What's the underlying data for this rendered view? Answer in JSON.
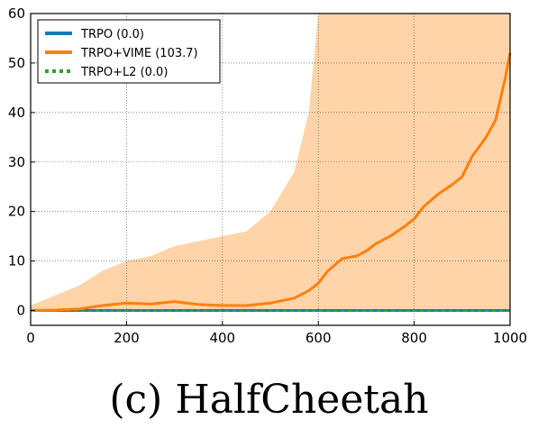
{
  "caption": "(c) HalfCheetah",
  "chart_data": {
    "type": "line",
    "xlim": [
      0,
      1000
    ],
    "ylim": [
      -3,
      60
    ],
    "xticks": [
      0,
      200,
      400,
      600,
      800,
      1000
    ],
    "yticks": [
      0,
      10,
      20,
      30,
      40,
      50,
      60
    ],
    "grid": true,
    "legend_position": "top-left",
    "series": [
      {
        "name": "TRPO (0.0)",
        "color": "#1f77b4",
        "style": "solid",
        "x": [
          0,
          100,
          200,
          300,
          400,
          500,
          600,
          700,
          800,
          900,
          1000
        ],
        "y": [
          0,
          0,
          0,
          0,
          0,
          0,
          0,
          0,
          0,
          0,
          0
        ]
      },
      {
        "name": "TRPO+VIME (103.7)",
        "color": "#ff7f0e",
        "band_color": "#ffcc99",
        "style": "solid",
        "x": [
          0,
          50,
          100,
          150,
          200,
          250,
          300,
          350,
          400,
          450,
          500,
          550,
          580,
          600,
          620,
          650,
          680,
          700,
          720,
          750,
          780,
          800,
          820,
          850,
          880,
          900,
          920,
          950,
          970,
          990,
          1000
        ],
        "y": [
          0,
          0.1,
          0.3,
          1.0,
          1.5,
          1.3,
          1.8,
          1.2,
          1.0,
          1.0,
          1.5,
          2.5,
          4.0,
          5.5,
          8.0,
          10.5,
          11.0,
          12.0,
          13.5,
          15.0,
          17.0,
          18.5,
          21.0,
          23.5,
          25.5,
          27.0,
          31.0,
          35.0,
          38.5,
          47.0,
          52.0
        ],
        "band_upper": [
          1,
          3,
          5,
          8,
          10,
          11,
          13,
          14,
          15,
          16,
          20,
          28,
          40,
          60,
          60,
          60,
          60,
          60,
          60,
          60,
          60,
          60,
          60,
          60,
          60,
          60,
          60,
          60,
          60,
          60,
          60
        ],
        "band_lower": [
          0,
          0,
          0,
          0,
          0,
          0,
          0,
          0,
          0,
          0,
          0,
          0,
          0,
          0,
          0,
          0,
          0,
          0,
          0,
          0,
          0,
          0,
          0,
          0,
          0,
          0,
          0,
          0,
          0,
          0,
          0
        ]
      },
      {
        "name": "TRPO+L2 (0.0)",
        "color": "#2ca02c",
        "style": "dotted",
        "x": [
          0,
          100,
          200,
          300,
          400,
          500,
          600,
          700,
          800,
          900,
          1000
        ],
        "y": [
          0,
          0,
          0,
          0,
          0,
          0,
          0,
          0,
          0,
          0,
          0
        ]
      }
    ]
  }
}
